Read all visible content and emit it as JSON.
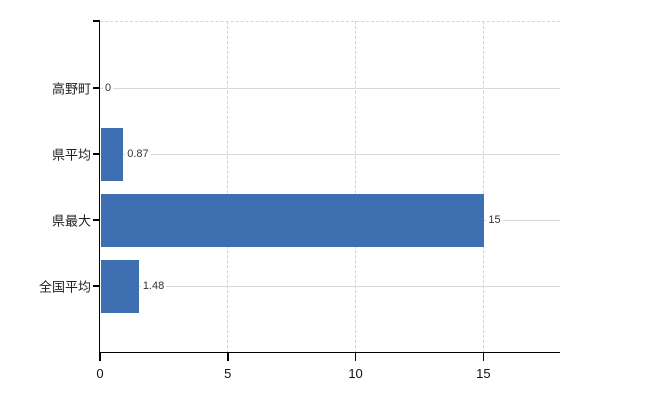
{
  "chart_data": {
    "type": "bar",
    "orientation": "horizontal",
    "title": "",
    "categories": [
      "高野町",
      "県平均",
      "県最大",
      "全国平均"
    ],
    "values": [
      0,
      0.87,
      15,
      1.48
    ],
    "value_labels": [
      "0",
      "0.87",
      "15",
      "1.48"
    ],
    "x_ticks": [
      0,
      5,
      10,
      15
    ],
    "x_tick_labels": [
      "0",
      "5",
      "10",
      "15"
    ],
    "xlim": [
      0,
      18
    ],
    "grid": {
      "horizontal_style": "solid",
      "vertical_style": "dashed",
      "top_border_style": "dashed"
    },
    "legend": "none",
    "colors": {
      "bar": "#3e6fb1",
      "axis": "#000000",
      "horizontal_gridline": "#d4dad4",
      "vertical_gridline": "#ccd4cc",
      "top_border": "#d6d6d6",
      "category_label": "#222222",
      "value_label": "#333333",
      "tick_label": "#111111",
      "background": "#ffffff"
    }
  }
}
